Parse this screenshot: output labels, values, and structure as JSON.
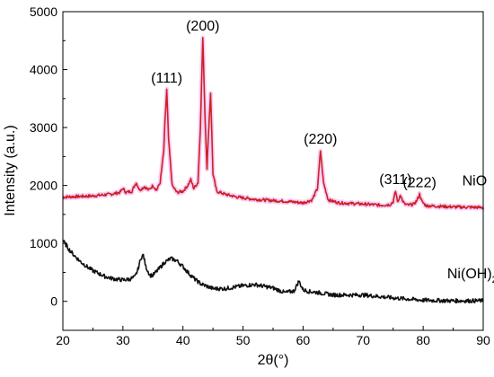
{
  "chart_data": {
    "type": "line",
    "title": "",
    "xlabel": "2θ(°)",
    "ylabel": "Intensity (a.u.)",
    "xlim": [
      20,
      90
    ],
    "ylim": [
      -500,
      5000
    ],
    "x_ticks": [
      20,
      30,
      40,
      50,
      60,
      70,
      80,
      90
    ],
    "y_ticks": [
      0,
      1000,
      2000,
      3000,
      4000,
      5000
    ],
    "grid": false,
    "legend": "none",
    "series": [
      {
        "name": "NiO",
        "color": "#cc2222",
        "halo_color": "#f4b8f4",
        "x": [
          20,
          25,
          28,
          29.5,
          30,
          30.5,
          31.5,
          32.2,
          32.8,
          33.6,
          34.3,
          35.0,
          35.6,
          36.2,
          36.8,
          37.0,
          37.3,
          37.6,
          38.2,
          39,
          40,
          40.8,
          41.3,
          41.8,
          42.5,
          42.9,
          43.3,
          43.7,
          44.0,
          44.3,
          44.6,
          45.0,
          45.6,
          47,
          49,
          52,
          55,
          58,
          60,
          61.5,
          62.4,
          62.9,
          63.4,
          64.2,
          66,
          70,
          73,
          74.5,
          75.0,
          75.4,
          75.8,
          76.2,
          76.5,
          76.9,
          77.5,
          78.5,
          79.0,
          79.4,
          79.8,
          80.5,
          85,
          90
        ],
        "y": [
          1800,
          1820,
          1850,
          1880,
          1950,
          1880,
          1900,
          2050,
          1920,
          1980,
          1920,
          2000,
          1920,
          2050,
          2600,
          3100,
          3650,
          2800,
          2000,
          1880,
          1900,
          2000,
          2100,
          1950,
          2050,
          3000,
          4550,
          3100,
          2300,
          3000,
          3600,
          2200,
          1900,
          1850,
          1800,
          1760,
          1740,
          1720,
          1700,
          1750,
          1950,
          2600,
          2050,
          1750,
          1700,
          1680,
          1660,
          1670,
          1720,
          1900,
          1700,
          1850,
          1750,
          1680,
          1660,
          1680,
          1750,
          1850,
          1720,
          1650,
          1630,
          1620
        ]
      },
      {
        "name": "Ni(OH)₂",
        "color": "#111111",
        "x": [
          20,
          21,
          22,
          23,
          24,
          25,
          26,
          27,
          28,
          29,
          30,
          31,
          32,
          32.5,
          33.0,
          33.4,
          33.8,
          34.5,
          35,
          36,
          37,
          38,
          39,
          40,
          41,
          42,
          43,
          45,
          47,
          50,
          52,
          55,
          57,
          58.5,
          59.3,
          60.0,
          61,
          62,
          65,
          70,
          75,
          80,
          85,
          90
        ],
        "y": [
          1050,
          900,
          780,
          680,
          600,
          530,
          480,
          430,
          400,
          380,
          370,
          380,
          420,
          550,
          750,
          800,
          600,
          450,
          450,
          560,
          680,
          740,
          700,
          600,
          480,
          380,
          300,
          220,
          220,
          270,
          290,
          230,
          150,
          180,
          350,
          200,
          170,
          160,
          110,
          110,
          60,
          20,
          10,
          10
        ]
      }
    ],
    "peak_labels": [
      {
        "x": 37.3,
        "y": 3650,
        "text": "(111)"
      },
      {
        "x": 43.3,
        "y": 4550,
        "text": "(200)"
      },
      {
        "x": 62.9,
        "y": 2600,
        "text": "(220)"
      },
      {
        "x": 75.4,
        "y": 1900,
        "text": "(311)"
      },
      {
        "x": 79.4,
        "y": 1850,
        "text": "(222)"
      }
    ],
    "series_labels": [
      {
        "x": 86.5,
        "y": 2000,
        "text": "NiO"
      },
      {
        "x": 84.0,
        "y": 400,
        "text": "Ni(OH)",
        "sub": "2"
      }
    ]
  }
}
